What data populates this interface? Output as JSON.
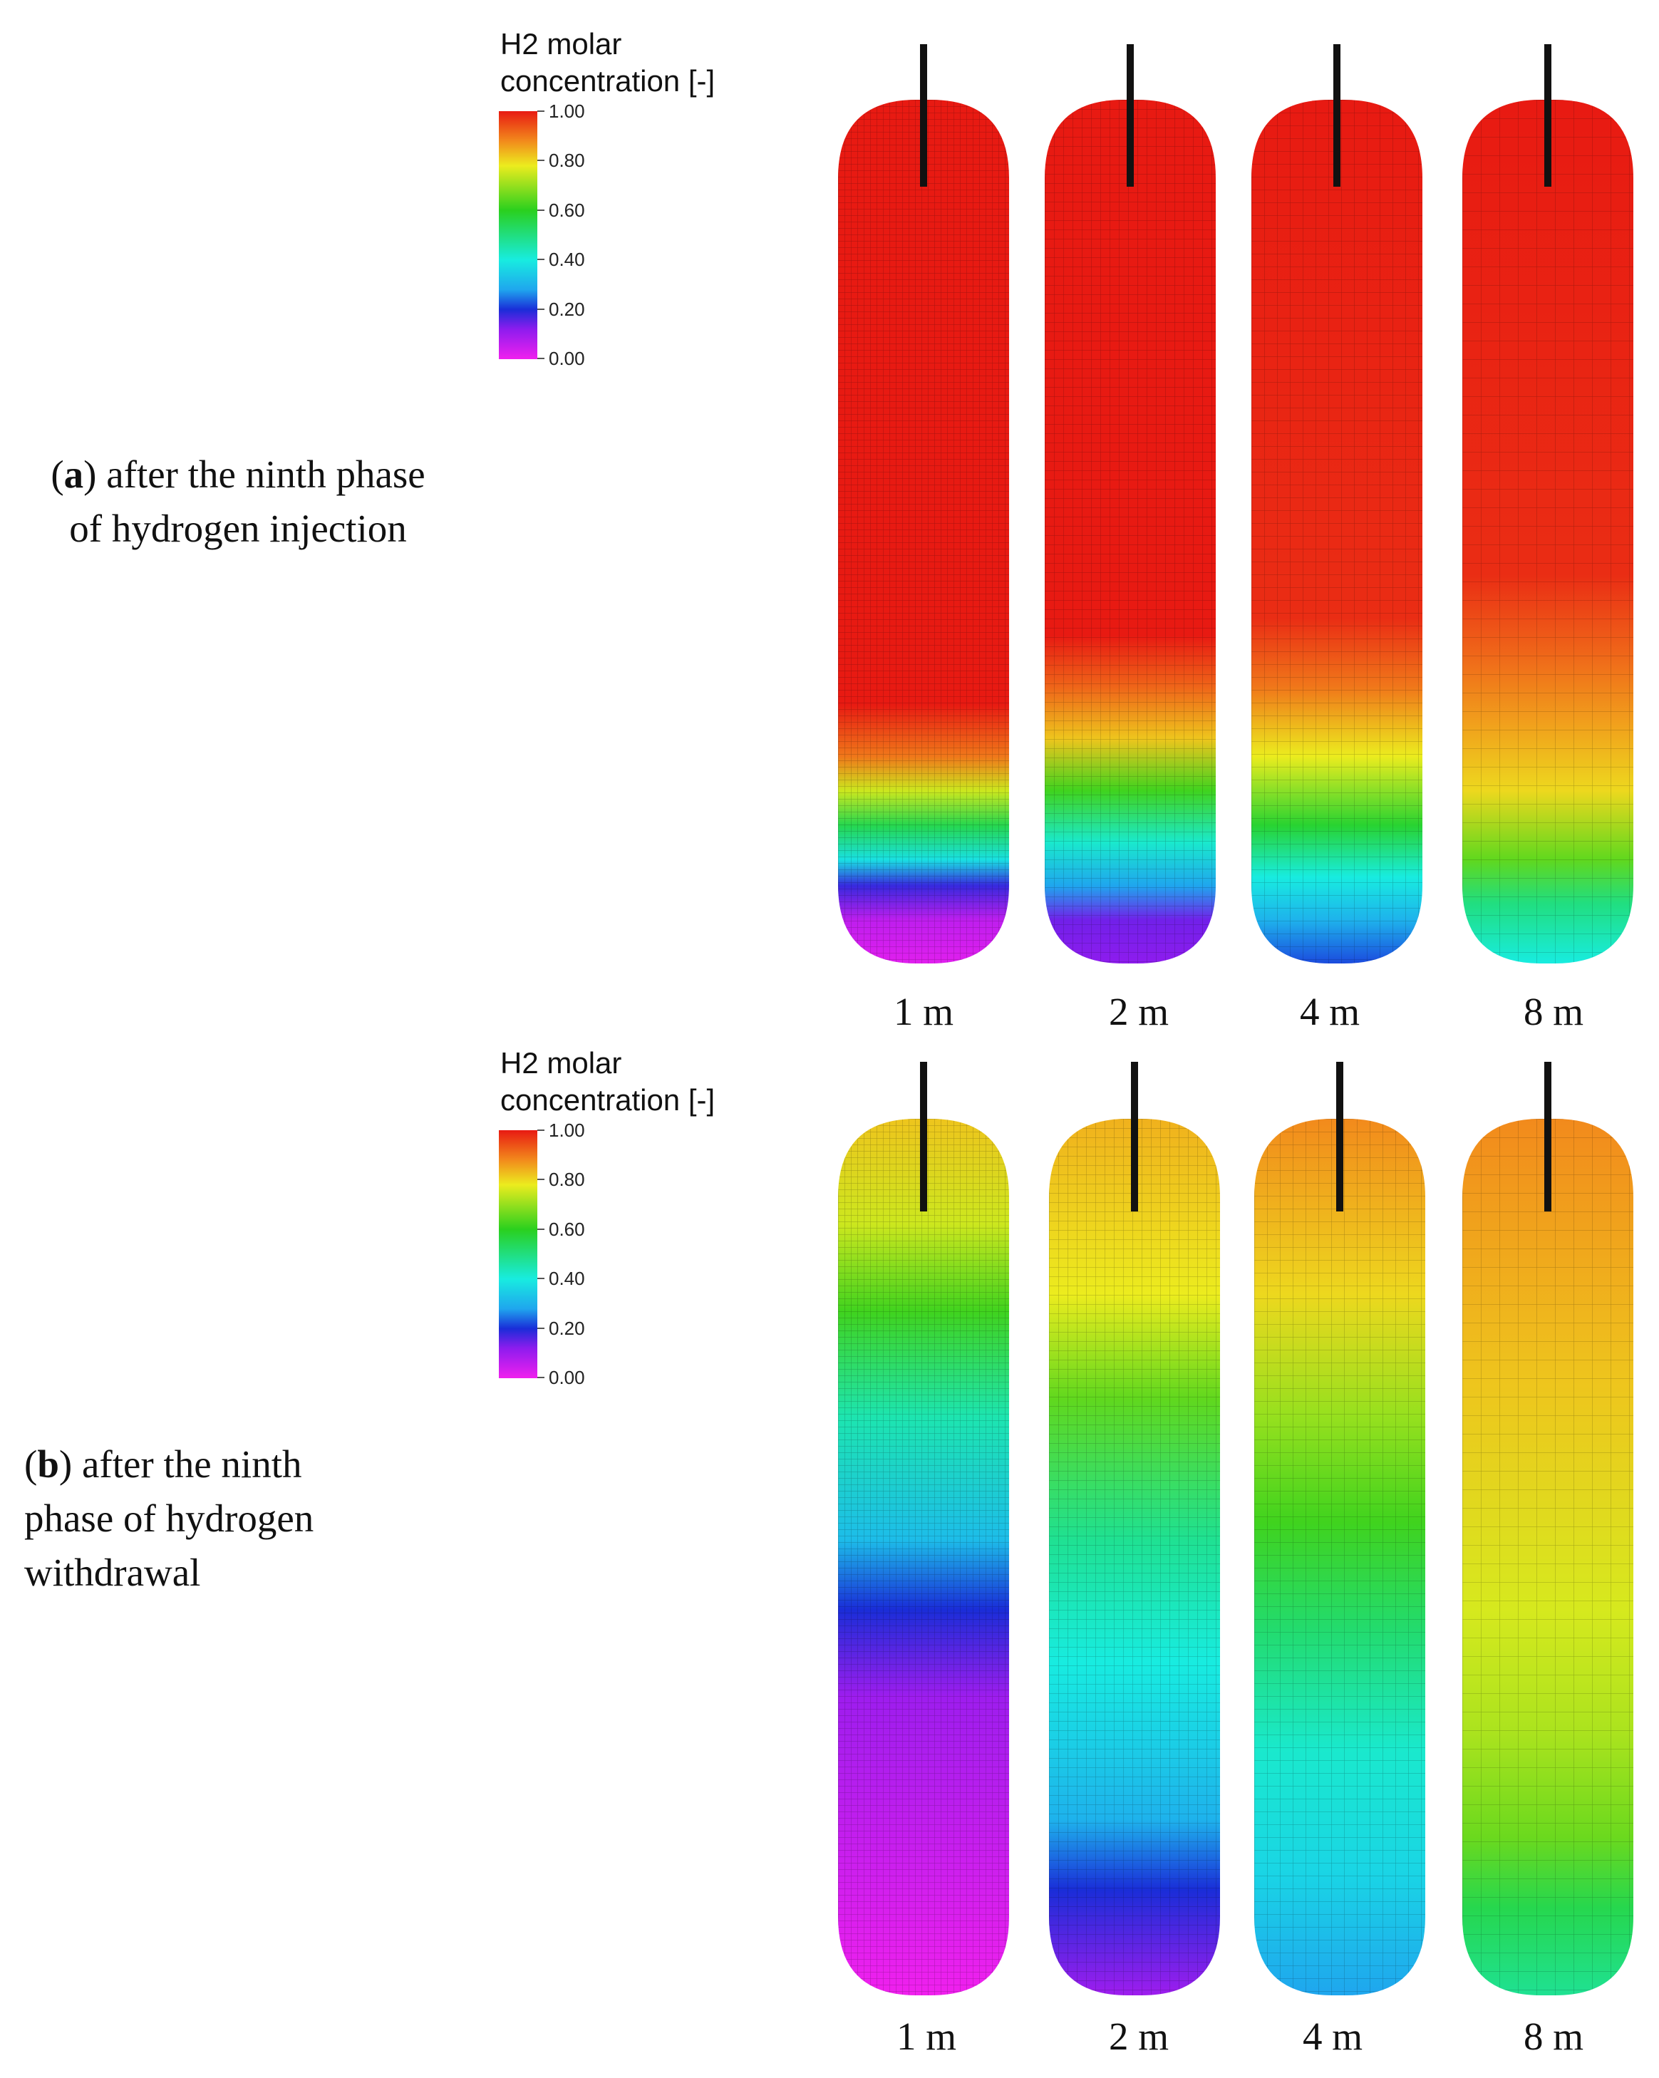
{
  "panels": [
    {
      "caption": {
        "letter": "a",
        "open": "(",
        "close": ")",
        "text_line1": " after the ninth phase",
        "text_line2": "of hydrogen injection",
        "text_line3": ""
      },
      "legend": {
        "title_line1": "H2 molar",
        "title_line2": "concentration [-]",
        "ticks": [
          "1.00",
          "0.80",
          "0.60",
          "0.40",
          "0.20",
          "0.00"
        ]
      },
      "vessels": [
        {
          "label": "1 m",
          "concentration_profile": [
            [
              0.0,
              1.0
            ],
            [
              0.7,
              1.0
            ],
            [
              0.76,
              0.9
            ],
            [
              0.8,
              0.75
            ],
            [
              0.84,
              0.55
            ],
            [
              0.88,
              0.38
            ],
            [
              0.91,
              0.18
            ],
            [
              0.95,
              0.06
            ],
            [
              1.0,
              0.02
            ]
          ]
        },
        {
          "label": "2 m",
          "concentration_profile": [
            [
              0.0,
              1.0
            ],
            [
              0.62,
              1.0
            ],
            [
              0.68,
              0.92
            ],
            [
              0.74,
              0.82
            ],
            [
              0.8,
              0.62
            ],
            [
              0.86,
              0.42
            ],
            [
              0.91,
              0.28
            ],
            [
              0.95,
              0.14
            ],
            [
              1.0,
              0.12
            ]
          ]
        },
        {
          "label": "4 m",
          "concentration_profile": [
            [
              0.0,
              1.0
            ],
            [
              0.6,
              0.98
            ],
            [
              0.68,
              0.9
            ],
            [
              0.76,
              0.78
            ],
            [
              0.84,
              0.58
            ],
            [
              0.9,
              0.4
            ],
            [
              0.95,
              0.3
            ],
            [
              1.0,
              0.22
            ]
          ]
        },
        {
          "label": "8 m",
          "concentration_profile": [
            [
              0.0,
              1.0
            ],
            [
              0.55,
              0.98
            ],
            [
              0.64,
              0.92
            ],
            [
              0.72,
              0.86
            ],
            [
              0.8,
              0.8
            ],
            [
              0.88,
              0.65
            ],
            [
              0.93,
              0.5
            ],
            [
              1.0,
              0.4
            ]
          ]
        }
      ]
    },
    {
      "caption": {
        "letter": "b",
        "open": "(",
        "close": ")",
        "text_line1": " after the ninth",
        "text_line2": "phase of hydrogen",
        "text_line3": "withdrawal"
      },
      "legend": {
        "title_line1": "H2 molar",
        "title_line2": "concentration [-]",
        "ticks": [
          "1.00",
          "0.80",
          "0.60",
          "0.40",
          "0.20",
          "0.00"
        ]
      },
      "vessels": [
        {
          "label": "1 m",
          "concentration_profile": [
            [
              0.0,
              0.82
            ],
            [
              0.12,
              0.75
            ],
            [
              0.22,
              0.62
            ],
            [
              0.34,
              0.45
            ],
            [
              0.48,
              0.32
            ],
            [
              0.56,
              0.2
            ],
            [
              0.66,
              0.1
            ],
            [
              1.0,
              0.0
            ]
          ]
        },
        {
          "label": "2 m",
          "concentration_profile": [
            [
              0.0,
              0.84
            ],
            [
              0.2,
              0.78
            ],
            [
              0.32,
              0.65
            ],
            [
              0.48,
              0.48
            ],
            [
              0.62,
              0.4
            ],
            [
              0.8,
              0.3
            ],
            [
              0.88,
              0.2
            ],
            [
              1.0,
              0.1
            ]
          ]
        },
        {
          "label": "4 m",
          "concentration_profile": [
            [
              0.0,
              0.88
            ],
            [
              0.2,
              0.8
            ],
            [
              0.34,
              0.7
            ],
            [
              0.46,
              0.62
            ],
            [
              0.58,
              0.52
            ],
            [
              0.72,
              0.42
            ],
            [
              0.86,
              0.36
            ],
            [
              1.0,
              0.28
            ]
          ]
        },
        {
          "label": "8 m",
          "concentration_profile": [
            [
              0.0,
              0.88
            ],
            [
              0.3,
              0.82
            ],
            [
              0.56,
              0.76
            ],
            [
              0.7,
              0.72
            ],
            [
              0.82,
              0.66
            ],
            [
              0.9,
              0.55
            ],
            [
              1.0,
              0.48
            ]
          ]
        }
      ]
    }
  ]
}
